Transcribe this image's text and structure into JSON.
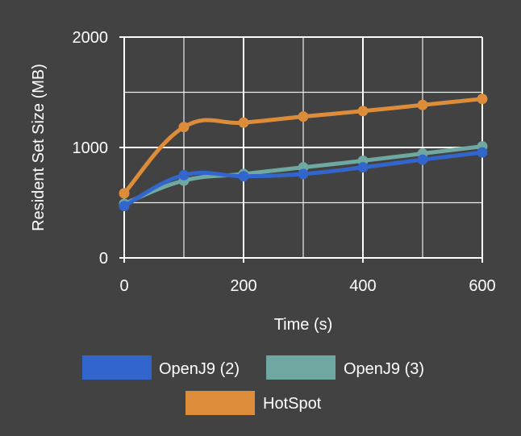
{
  "chart_data": {
    "type": "line",
    "title": "",
    "xlabel": "Time (s)",
    "ylabel": "Resident Set Size (MB)",
    "xlim": [
      0,
      600
    ],
    "ylim": [
      0,
      2000
    ],
    "x_ticks": [
      0,
      200,
      400,
      600
    ],
    "y_ticks": [
      0,
      1000,
      2000
    ],
    "grid": true,
    "legend_position": "bottom",
    "x": [
      0,
      100,
      200,
      300,
      400,
      500,
      600
    ],
    "series": [
      {
        "name": "OpenJ9 (2)",
        "color": "#3366cc",
        "values": [
          470,
          750,
          740,
          760,
          820,
          890,
          955
        ]
      },
      {
        "name": "OpenJ9 (3)",
        "color": "#6fa8a0",
        "values": [
          490,
          700,
          760,
          820,
          880,
          945,
          1010
        ]
      },
      {
        "name": "HotSpot",
        "color": "#dd8c3a",
        "values": [
          585,
          1185,
          1225,
          1280,
          1330,
          1385,
          1440
        ]
      }
    ]
  }
}
